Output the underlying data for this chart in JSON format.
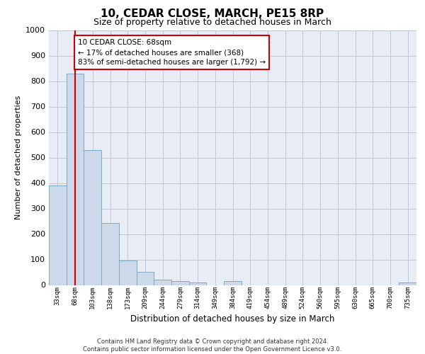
{
  "title": "10, CEDAR CLOSE, MARCH, PE15 8RP",
  "subtitle": "Size of property relative to detached houses in March",
  "xlabel": "Distribution of detached houses by size in March",
  "ylabel": "Number of detached properties",
  "bar_labels": [
    "33sqm",
    "68sqm",
    "103sqm",
    "138sqm",
    "173sqm",
    "209sqm",
    "244sqm",
    "279sqm",
    "314sqm",
    "349sqm",
    "384sqm",
    "419sqm",
    "454sqm",
    "489sqm",
    "524sqm",
    "560sqm",
    "595sqm",
    "630sqm",
    "665sqm",
    "700sqm",
    "735sqm"
  ],
  "bar_values": [
    390,
    830,
    530,
    243,
    95,
    52,
    20,
    15,
    10,
    0,
    15,
    0,
    0,
    0,
    0,
    0,
    0,
    0,
    0,
    0,
    10
  ],
  "bar_color": "#ccd9e8",
  "bar_edgecolor": "#7aaac8",
  "vline_x": 1,
  "vline_color": "#cc0000",
  "annotation_text": "10 CEDAR CLOSE: 68sqm\n← 17% of detached houses are smaller (368)\n83% of semi-detached houses are larger (1,792) →",
  "annotation_box_color": "#ffffff",
  "annotation_box_edgecolor": "#cc0000",
  "ylim": [
    0,
    1000
  ],
  "yticks": [
    0,
    100,
    200,
    300,
    400,
    500,
    600,
    700,
    800,
    900,
    1000
  ],
  "grid_color": "#c0c8d8",
  "bg_color": "#e8edf5",
  "footer_line1": "Contains HM Land Registry data © Crown copyright and database right 2024.",
  "footer_line2": "Contains public sector information licensed under the Open Government Licence v3.0."
}
